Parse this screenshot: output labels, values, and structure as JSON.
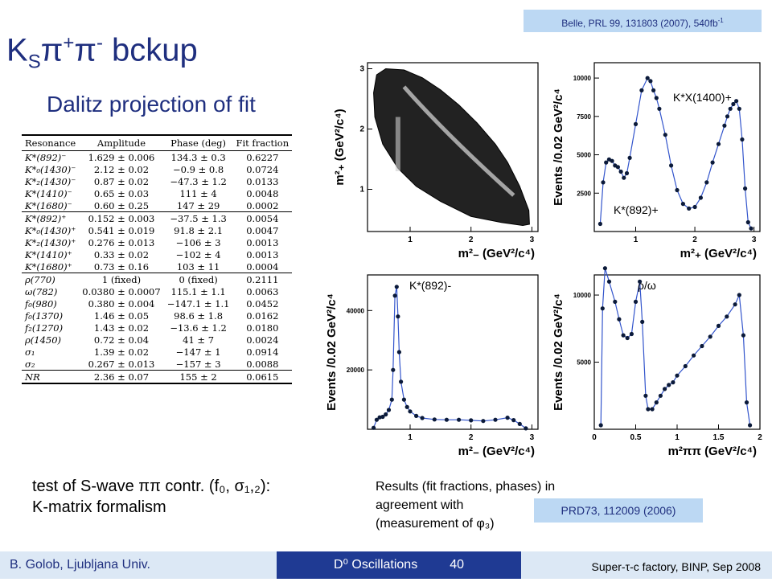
{
  "slide": {
    "title_main": "K",
    "title_sub": "S",
    "title_pi1": "π",
    "title_sup1": "+",
    "title_pi2": "π",
    "title_sup2": "-",
    "title_rest": " bckup",
    "subtitle": "Dalitz projection of fit",
    "reference_top": "Belle, PRL 99, 131803 (2007), 540fb",
    "reference_top_sup": "-1",
    "reference_prd": "PRD73, 112009 (2006)"
  },
  "table": {
    "headers": [
      "Resonance",
      "Amplitude",
      "Phase (deg)",
      "Fit fraction"
    ],
    "groups": [
      [
        [
          "K*(892)⁻",
          "1.629 ± 0.006",
          "134.3 ± 0.3",
          "0.6227"
        ],
        [
          "K*₀(1430)⁻",
          "2.12 ± 0.02",
          "−0.9 ± 0.8",
          "0.0724"
        ],
        [
          "K*₂(1430)⁻",
          "0.87 ± 0.02",
          "−47.3 ± 1.2",
          "0.0133"
        ],
        [
          "K*(1410)⁻",
          "0.65 ± 0.03",
          "111 ± 4",
          "0.0048"
        ],
        [
          "K*(1680)⁻",
          "0.60 ± 0.25",
          "147 ± 29",
          "0.0002"
        ]
      ],
      [
        [
          "K*(892)⁺",
          "0.152 ± 0.003",
          "−37.5 ± 1.3",
          "0.0054"
        ],
        [
          "K*₀(1430)⁺",
          "0.541 ± 0.019",
          "91.8 ± 2.1",
          "0.0047"
        ],
        [
          "K*₂(1430)⁺",
          "0.276 ± 0.013",
          "−106 ± 3",
          "0.0013"
        ],
        [
          "K*(1410)⁺",
          "0.33 ± 0.02",
          "−102 ± 4",
          "0.0013"
        ],
        [
          "K*(1680)⁺",
          "0.73 ± 0.16",
          "103 ± 11",
          "0.0004"
        ]
      ],
      [
        [
          "ρ(770)",
          "1 (fixed)",
          "0 (fixed)",
          "0.2111"
        ],
        [
          "ω(782)",
          "0.0380 ± 0.0007",
          "115.1 ± 1.1",
          "0.0063"
        ],
        [
          "f₀(980)",
          "0.380 ± 0.004",
          "−147.1 ± 1.1",
          "0.0452"
        ],
        [
          "f₀(1370)",
          "1.46 ± 0.05",
          "98.6 ± 1.8",
          "0.0162"
        ],
        [
          "f₂(1270)",
          "1.43 ± 0.02",
          "−13.6 ± 1.2",
          "0.0180"
        ],
        [
          "ρ(1450)",
          "0.72 ± 0.04",
          "41 ± 7",
          "0.0024"
        ],
        [
          "σ₁",
          "1.39 ± 0.02",
          "−147 ± 1",
          "0.0914"
        ],
        [
          "σ₂",
          "0.267 ± 0.013",
          "−157 ± 3",
          "0.0088"
        ]
      ],
      [
        [
          "NR",
          "2.36 ± 0.07",
          "155 ± 2",
          "0.0615"
        ]
      ]
    ]
  },
  "notes": {
    "swave_line1": "test of S-wave ππ contr. (f₀, σ₁,₂):",
    "swave_line2": "K-matrix formalism",
    "results_line1": "Results (fit fractions, phases) in",
    "results_line2": "agreement with",
    "results_line3": "(measurement of φ₃)"
  },
  "footer": {
    "left": "B. Golob, Ljubljana Univ.",
    "center": "D⁰ Oscillations",
    "page": "40",
    "right": "Super-τ-c factory, BINP, Sep 2008"
  },
  "chart_data": [
    {
      "type": "scatter",
      "panel": "dalitz",
      "xlabel": "m²₋ (GeV²/c⁴)",
      "ylabel": "m²₊ (GeV²/c⁴)",
      "xlim": [
        0.3,
        3.1
      ],
      "ylim": [
        0.3,
        3.1
      ],
      "xticks": [
        1,
        2,
        3
      ],
      "yticks": [
        1,
        2,
        3
      ],
      "boundary": [
        [
          0.4,
          2.6
        ],
        [
          0.45,
          2.9
        ],
        [
          0.6,
          3.0
        ],
        [
          0.9,
          2.98
        ],
        [
          1.2,
          2.85
        ],
        [
          1.5,
          2.65
        ],
        [
          1.8,
          2.4
        ],
        [
          2.1,
          2.1
        ],
        [
          2.4,
          1.75
        ],
        [
          2.6,
          1.45
        ],
        [
          2.8,
          1.05
        ],
        [
          2.95,
          0.65
        ],
        [
          2.96,
          0.42
        ],
        [
          2.85,
          0.4
        ],
        [
          2.5,
          0.45
        ],
        [
          2.0,
          0.55
        ],
        [
          1.5,
          0.8
        ],
        [
          1.1,
          1.05
        ],
        [
          0.8,
          1.35
        ],
        [
          0.55,
          1.75
        ],
        [
          0.42,
          2.2
        ]
      ],
      "points": []
    },
    {
      "type": "line",
      "panel": "m_plus_projection",
      "xlabel": "m²₊ (GeV²/c⁴)",
      "ylabel": "Events /0.02 GeV²/c⁴",
      "xlim": [
        0.3,
        3.1
      ],
      "ylim": [
        0,
        11000
      ],
      "xticks": [
        1,
        2,
        3
      ],
      "yticks": [
        2500,
        5000,
        7500,
        10000
      ],
      "annotations": [
        "K*X(1400)+",
        "K*(892)+"
      ],
      "x": [
        0.4,
        0.45,
        0.5,
        0.55,
        0.6,
        0.65,
        0.7,
        0.75,
        0.8,
        0.85,
        0.9,
        1.0,
        1.1,
        1.2,
        1.25,
        1.3,
        1.35,
        1.4,
        1.5,
        1.6,
        1.7,
        1.8,
        1.9,
        2.0,
        2.1,
        2.2,
        2.3,
        2.4,
        2.5,
        2.55,
        2.6,
        2.65,
        2.7,
        2.75,
        2.8,
        2.85,
        2.9,
        2.95
      ],
      "values": [
        500,
        3200,
        4500,
        4700,
        4600,
        4300,
        4200,
        3900,
        3500,
        3800,
        4800,
        7000,
        9200,
        10000,
        9800,
        9200,
        8700,
        8000,
        6300,
        4300,
        2700,
        1800,
        1500,
        1600,
        2200,
        3200,
        4500,
        5700,
        6900,
        7500,
        8000,
        8300,
        8500,
        8000,
        6000,
        2800,
        600,
        200
      ]
    },
    {
      "type": "line",
      "panel": "m_minus_projection",
      "xlabel": "m²₋ (GeV²/c⁴)",
      "ylabel": "Events /0.02 GeV²/c⁴",
      "xlim": [
        0.3,
        3.1
      ],
      "ylim": [
        0,
        52000
      ],
      "xticks": [
        1,
        2,
        3
      ],
      "yticks": [
        20000,
        40000
      ],
      "annotations": [
        "K*(892)-"
      ],
      "x": [
        0.4,
        0.45,
        0.5,
        0.55,
        0.6,
        0.65,
        0.7,
        0.72,
        0.75,
        0.78,
        0.8,
        0.82,
        0.85,
        0.9,
        0.95,
        1.0,
        1.1,
        1.2,
        1.4,
        1.6,
        1.8,
        2.0,
        2.2,
        2.4,
        2.6,
        2.7,
        2.8,
        2.9
      ],
      "values": [
        500,
        3200,
        4000,
        4200,
        5000,
        6500,
        10000,
        20000,
        45000,
        48000,
        38000,
        26000,
        16000,
        10000,
        7500,
        6000,
        4500,
        3800,
        3300,
        3200,
        3200,
        3000,
        2800,
        3200,
        3900,
        3100,
        1800,
        300
      ]
    },
    {
      "type": "line",
      "panel": "m_pipi_projection",
      "xlabel": "m²ππ (GeV²/c⁴)",
      "ylabel": "Events /0.02 GeV²/c⁴",
      "xlim": [
        0,
        2.0
      ],
      "ylim": [
        0,
        11500
      ],
      "xticks": [
        0,
        0.5,
        1,
        1.5,
        2
      ],
      "yticks": [
        5000,
        10000
      ],
      "annotations": [
        "ρ/ω"
      ],
      "x": [
        0.08,
        0.1,
        0.13,
        0.18,
        0.25,
        0.3,
        0.35,
        0.4,
        0.45,
        0.5,
        0.55,
        0.58,
        0.62,
        0.65,
        0.7,
        0.75,
        0.8,
        0.85,
        0.9,
        0.95,
        1.0,
        1.1,
        1.2,
        1.3,
        1.4,
        1.5,
        1.6,
        1.7,
        1.75,
        1.8,
        1.84,
        1.88
      ],
      "values": [
        300,
        9000,
        12000,
        11000,
        9500,
        8200,
        7000,
        6800,
        7100,
        9500,
        11000,
        8000,
        2500,
        1500,
        1500,
        2000,
        2500,
        3000,
        3300,
        3500,
        4000,
        4700,
        5500,
        6200,
        6900,
        7700,
        8400,
        9300,
        10000,
        7000,
        2000,
        300
      ]
    }
  ]
}
